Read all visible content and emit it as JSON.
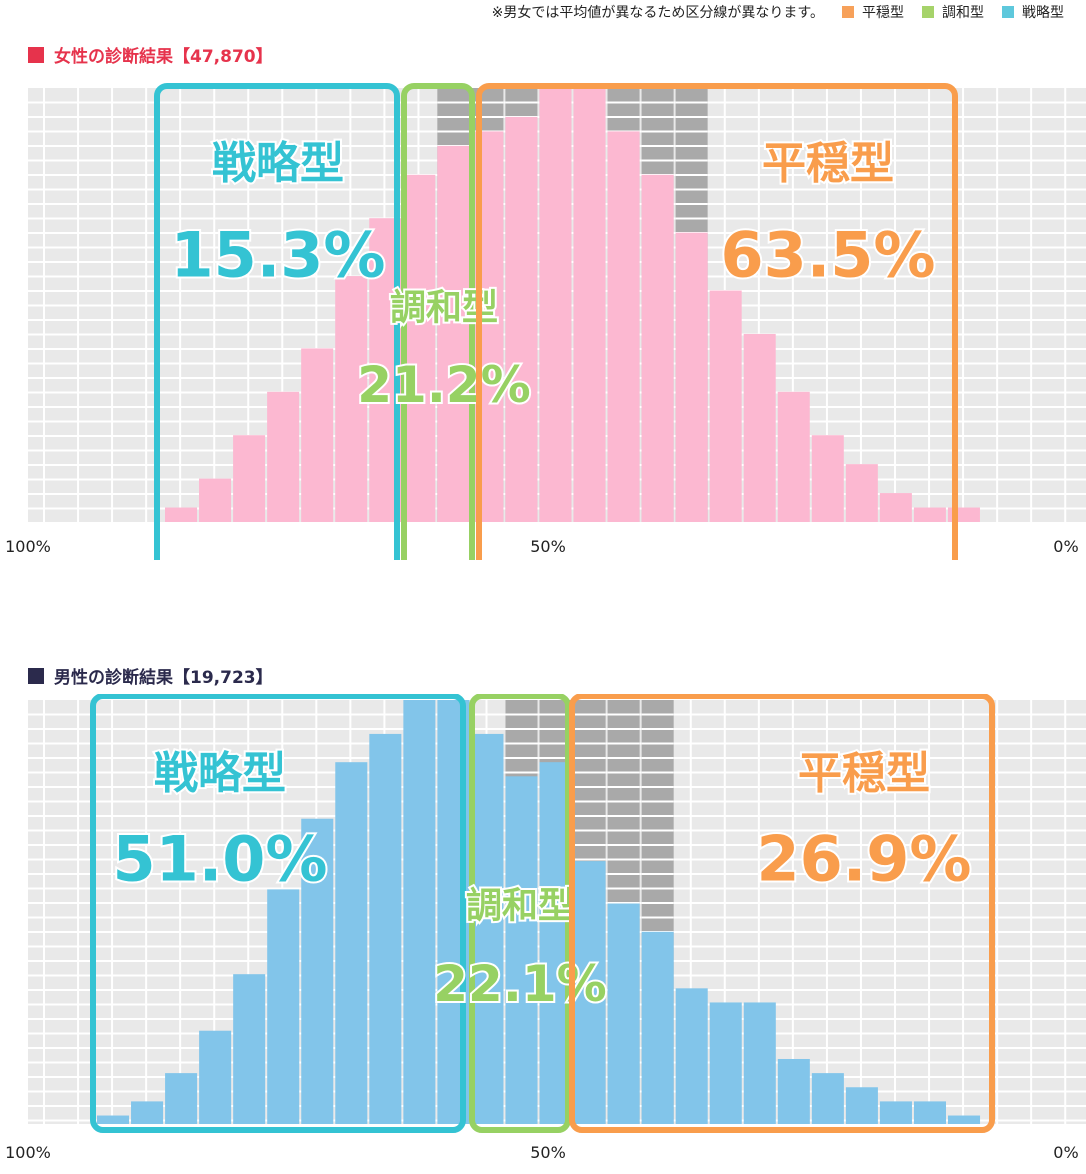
{
  "legend": {
    "note": "※男女では平均値が異なるため区分線が異なります。",
    "items": [
      {
        "label": "平穏型",
        "color": "#f7a15a"
      },
      {
        "label": "調和型",
        "color": "#a6d36a"
      },
      {
        "label": "戦略型",
        "color": "#5ec8dc"
      }
    ]
  },
  "colors": {
    "strategy": "#34c3d3",
    "harmony": "#97d163",
    "calm": "#f99d4c",
    "female_bar": "#fcb8d1",
    "male_bar": "#82c5ea",
    "gray_block": "#a9a9a9",
    "grid_bg": "#e9e9e9",
    "female_square": "#e6334c",
    "male_square": "#2b2a4c"
  },
  "chart_data": [
    {
      "type": "bar",
      "title": "女性の診断結果【47,870】",
      "x_tick_labels": [
        "100%",
        "50%",
        "0%"
      ],
      "ylim": [
        0,
        15
      ],
      "values": [
        0.5,
        1.5,
        3,
        4.5,
        6,
        8.5,
        10.5,
        12,
        13,
        13.5,
        14,
        15,
        15,
        13.5,
        12,
        10,
        8,
        6.5,
        4.5,
        3,
        2,
        1,
        0.5,
        0.5
      ],
      "gray_block_tops": [
        null,
        null,
        null,
        null,
        null,
        null,
        null,
        null,
        15,
        15,
        15,
        15,
        15,
        15,
        15,
        15,
        null,
        null,
        null,
        null,
        null,
        null,
        null,
        null
      ],
      "segments": [
        {
          "type": "戦略型",
          "percent": "15.3%",
          "color_key": "strategy"
        },
        {
          "type": "調和型",
          "percent": "21.2%",
          "color_key": "harmony"
        },
        {
          "type": "平穏型",
          "percent": "63.5%",
          "color_key": "calm"
        }
      ]
    },
    {
      "type": "bar",
      "title": "男性の診断結果【19,723】",
      "x_tick_labels": [
        "100%",
        "50%",
        "0%"
      ],
      "ylim": [
        0,
        15
      ],
      "values": [
        0.3,
        0.8,
        1.8,
        3.3,
        5.3,
        8.3,
        10.8,
        12.8,
        13.8,
        15,
        15,
        13.8,
        12.3,
        12.8,
        9.3,
        7.8,
        6.8,
        4.8,
        4.3,
        4.3,
        2.3,
        1.8,
        1.3,
        0.8,
        0.8,
        0.3
      ],
      "gray_block_tops": [
        null,
        null,
        null,
        null,
        null,
        null,
        null,
        null,
        null,
        null,
        null,
        null,
        15,
        15,
        15,
        15,
        15,
        null,
        null,
        null,
        null,
        null,
        null,
        null,
        null,
        null
      ],
      "segments": [
        {
          "type": "戦略型",
          "percent": "51.0%",
          "color_key": "strategy"
        },
        {
          "type": "調和型",
          "percent": "22.1%",
          "color_key": "harmony"
        },
        {
          "type": "平穏型",
          "percent": "26.9%",
          "color_key": "calm"
        }
      ]
    }
  ]
}
